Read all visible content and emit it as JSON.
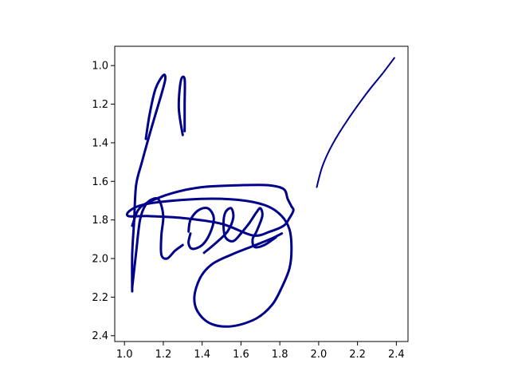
{
  "chart_data": {
    "type": "line",
    "title": "",
    "xlabel": "",
    "ylabel": "",
    "xlim": [
      0.95,
      2.46
    ],
    "ylim": [
      2.43,
      0.9
    ],
    "y_inverted": true,
    "grid": false,
    "legend": "none",
    "x_ticks": [
      "1.0",
      "1.2",
      "1.4",
      "1.6",
      "1.8",
      "2.0",
      "2.2",
      "2.4"
    ],
    "y_ticks": [
      "1.0",
      "1.2",
      "1.4",
      "1.6",
      "1.8",
      "2.0",
      "2.2",
      "2.4"
    ],
    "series": [
      {
        "color": "#00008b",
        "weight": "thick",
        "points": [
          [
            1.31,
            1.34
          ],
          [
            1.31,
            1.2
          ],
          [
            1.31,
            1.07
          ],
          [
            1.29,
            1.08
          ],
          [
            1.28,
            1.22
          ],
          [
            1.3,
            1.36
          ]
        ]
      },
      {
        "color": "#00008b",
        "weight": "thick",
        "points": [
          [
            1.11,
            1.38
          ],
          [
            1.13,
            1.25
          ],
          [
            1.16,
            1.12
          ],
          [
            1.2,
            1.05
          ],
          [
            1.21,
            1.07
          ],
          [
            1.19,
            1.15
          ],
          [
            1.14,
            1.32
          ],
          [
            1.09,
            1.5
          ],
          [
            1.06,
            1.62
          ],
          [
            1.05,
            1.8
          ],
          [
            1.04,
            1.98
          ],
          [
            1.04,
            2.17
          ]
        ]
      },
      {
        "color": "#00008b",
        "weight": "thick",
        "points": [
          [
            1.04,
            2.15
          ],
          [
            1.06,
            1.97
          ],
          [
            1.08,
            1.8
          ],
          [
            1.11,
            1.72
          ],
          [
            1.15,
            1.69
          ],
          [
            1.18,
            1.7
          ],
          [
            1.2,
            1.78
          ],
          [
            1.19,
            1.88
          ],
          [
            1.19,
            1.98
          ],
          [
            1.22,
            2.0
          ],
          [
            1.26,
            1.96
          ],
          [
            1.3,
            1.93
          ]
        ]
      },
      {
        "color": "#00008b",
        "weight": "thick",
        "points": [
          [
            1.04,
            1.83
          ],
          [
            1.07,
            1.75
          ],
          [
            1.12,
            1.71
          ],
          [
            1.25,
            1.66
          ],
          [
            1.4,
            1.63
          ],
          [
            1.6,
            1.62
          ],
          [
            1.74,
            1.62
          ],
          [
            1.82,
            1.64
          ],
          [
            1.84,
            1.69
          ],
          [
            1.86,
            1.73
          ],
          [
            1.87,
            1.75
          ],
          [
            1.85,
            1.79
          ],
          [
            1.82,
            1.83
          ],
          [
            1.75,
            1.86
          ],
          [
            1.66,
            1.88
          ],
          [
            1.5,
            1.82
          ],
          [
            1.3,
            1.79
          ],
          [
            1.12,
            1.78
          ],
          [
            1.02,
            1.78
          ],
          [
            1.03,
            1.75
          ],
          [
            1.1,
            1.72
          ],
          [
            1.25,
            1.7
          ],
          [
            1.45,
            1.69
          ],
          [
            1.62,
            1.7
          ],
          [
            1.74,
            1.73
          ],
          [
            1.81,
            1.78
          ],
          [
            1.85,
            1.85
          ],
          [
            1.86,
            1.95
          ],
          [
            1.85,
            2.05
          ],
          [
            1.81,
            2.15
          ],
          [
            1.76,
            2.24
          ],
          [
            1.68,
            2.31
          ],
          [
            1.56,
            2.35
          ],
          [
            1.45,
            2.34
          ],
          [
            1.38,
            2.28
          ],
          [
            1.36,
            2.2
          ],
          [
            1.39,
            2.1
          ],
          [
            1.45,
            2.03
          ],
          [
            1.55,
            1.98
          ],
          [
            1.65,
            1.94
          ],
          [
            1.75,
            1.9
          ],
          [
            1.81,
            1.87
          ]
        ]
      },
      {
        "color": "#00008b",
        "weight": "thick",
        "points": [
          [
            1.34,
            1.87
          ],
          [
            1.33,
            1.92
          ],
          [
            1.35,
            1.95
          ],
          [
            1.4,
            1.93
          ],
          [
            1.44,
            1.87
          ],
          [
            1.46,
            1.79
          ],
          [
            1.43,
            1.74
          ],
          [
            1.38,
            1.75
          ],
          [
            1.34,
            1.8
          ],
          [
            1.33,
            1.86
          ]
        ]
      },
      {
        "color": "#00008b",
        "weight": "thick",
        "points": [
          [
            1.41,
            1.97
          ],
          [
            1.47,
            1.92
          ],
          [
            1.53,
            1.86
          ],
          [
            1.56,
            1.79
          ],
          [
            1.55,
            1.74
          ],
          [
            1.52,
            1.76
          ],
          [
            1.51,
            1.82
          ],
          [
            1.52,
            1.89
          ],
          [
            1.56,
            1.91
          ],
          [
            1.6,
            1.87
          ]
        ]
      },
      {
        "color": "#00008b",
        "weight": "thick",
        "points": [
          [
            1.6,
            1.87
          ],
          [
            1.64,
            1.82
          ],
          [
            1.68,
            1.76
          ],
          [
            1.7,
            1.74
          ],
          [
            1.71,
            1.78
          ],
          [
            1.68,
            1.86
          ],
          [
            1.66,
            1.9
          ],
          [
            1.67,
            1.94
          ],
          [
            1.72,
            1.93
          ],
          [
            1.78,
            1.89
          ]
        ]
      },
      {
        "color": "#00008b",
        "weight": "thin",
        "points": [
          [
            1.99,
            1.63
          ],
          [
            2.02,
            1.52
          ],
          [
            2.07,
            1.41
          ],
          [
            2.15,
            1.28
          ],
          [
            2.25,
            1.14
          ],
          [
            2.33,
            1.04
          ],
          [
            2.39,
            0.96
          ]
        ]
      }
    ]
  }
}
